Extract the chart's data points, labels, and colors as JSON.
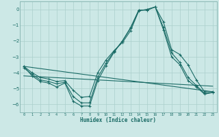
{
  "xlabel": "Humidex (Indice chaleur)",
  "bg_color": "#cce8e6",
  "grid_color": "#aacfcc",
  "line_color": "#1a6b66",
  "spine_color": "#8ab8b5",
  "xlim": [
    -0.5,
    23.5
  ],
  "ylim": [
    -6.5,
    0.5
  ],
  "yticks": [
    0,
    -1,
    -2,
    -3,
    -4,
    -5,
    -6
  ],
  "xticks": [
    0,
    1,
    2,
    3,
    4,
    5,
    6,
    7,
    8,
    9,
    10,
    11,
    12,
    13,
    14,
    15,
    16,
    17,
    18,
    19,
    20,
    21,
    22,
    23
  ],
  "line1_x": [
    0,
    1,
    2,
    3,
    4,
    5,
    6,
    7,
    8,
    9,
    10,
    11,
    12,
    13,
    14,
    15,
    16,
    17,
    18,
    19,
    20,
    21,
    22,
    23
  ],
  "line1_y": [
    -3.6,
    -4.2,
    -4.55,
    -4.65,
    -4.9,
    -4.65,
    -5.8,
    -6.1,
    -6.1,
    -4.5,
    -3.55,
    -2.7,
    -2.0,
    -1.15,
    -0.05,
    -0.05,
    0.15,
    -0.8,
    -2.55,
    -2.85,
    -3.5,
    -4.45,
    -5.2,
    -5.2
  ],
  "line2_x": [
    0,
    1,
    2,
    3,
    4,
    5,
    6,
    7,
    8,
    9,
    10,
    11,
    12,
    13,
    14,
    15,
    16,
    17,
    18,
    19,
    20,
    21,
    22,
    23
  ],
  "line2_y": [
    -3.7,
    -4.1,
    -4.45,
    -4.55,
    -4.7,
    -4.6,
    -5.5,
    -5.9,
    -5.9,
    -4.3,
    -3.4,
    -2.65,
    -2.0,
    -1.2,
    -0.05,
    -0.05,
    0.15,
    -1.15,
    -2.75,
    -3.35,
    -4.3,
    -4.8,
    -5.3,
    -5.25
  ],
  "line3_x": [
    0,
    1,
    2,
    3,
    4,
    5,
    6,
    7,
    8,
    9,
    10,
    11,
    12,
    13,
    14,
    15,
    16,
    17,
    18,
    19,
    20,
    21,
    22,
    23
  ],
  "line3_y": [
    -3.6,
    -4.0,
    -4.3,
    -4.4,
    -4.55,
    -4.5,
    -5.1,
    -5.55,
    -5.5,
    -4.0,
    -3.2,
    -2.6,
    -2.1,
    -1.35,
    -0.1,
    0.0,
    0.15,
    -1.3,
    -3.0,
    -3.5,
    -4.5,
    -4.9,
    -5.35,
    -5.25
  ],
  "line4_x": [
    0,
    23
  ],
  "line4_y": [
    -3.6,
    -5.2
  ],
  "line5_x": [
    0,
    23
  ],
  "line5_y": [
    -4.2,
    -4.85
  ]
}
